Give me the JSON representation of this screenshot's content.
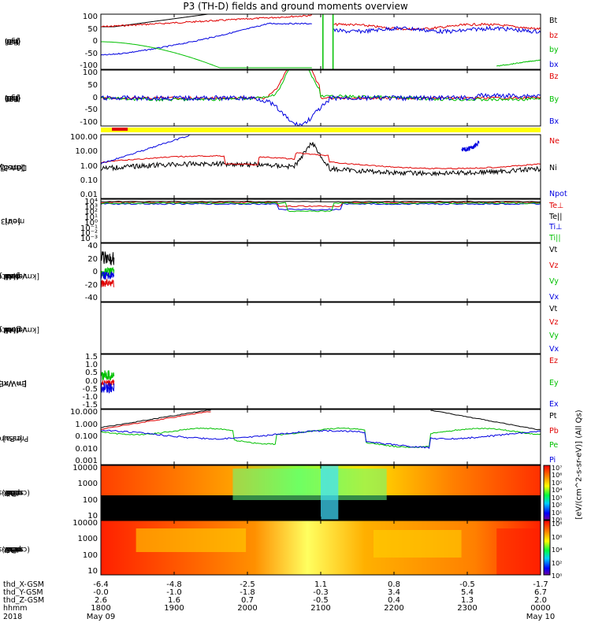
{
  "title": "P3 (TH-D) fields and ground moments overview",
  "chart_data": [
    {
      "type": "line",
      "panel": "fgs",
      "ylabel_lines": [
        "thd",
        "fgs",
        "gsm",
        "[nT]"
      ],
      "yticks": [
        100,
        50,
        0,
        -50,
        -100
      ],
      "ylim": [
        -100,
        100
      ],
      "series": [
        {
          "name": "Bt",
          "color": "#000000"
        },
        {
          "name": "bz",
          "color": "#e00000"
        },
        {
          "name": "by",
          "color": "#00c000"
        },
        {
          "name": "bx",
          "color": "#0000e0"
        }
      ]
    },
    {
      "type": "line",
      "panel": "fgs-dBz",
      "ylabel_lines": [
        "thd",
        "fgs",
        "gsm",
        "-T89",
        "[nT]"
      ],
      "yticks": [
        100,
        50,
        0,
        -50,
        -100
      ],
      "ylim": [
        -120,
        120
      ],
      "series": [
        {
          "name": "Bz",
          "color": "#e00000"
        },
        {
          "name": "By",
          "color": "#00c000"
        },
        {
          "name": "Bx",
          "color": "#0000e0"
        }
      ]
    },
    {
      "type": "line",
      "panel": "density",
      "log": true,
      "ylabel_lines": [
        "Density",
        "[1/cc]",
        "[cm-3]"
      ],
      "yticks": [
        "100.00",
        "10.00",
        "1.00",
        "0.10",
        "0.01"
      ],
      "series": [
        {
          "name": "Ne",
          "color": "#e00000"
        },
        {
          "name": "Ni",
          "color": "#000000"
        },
        {
          "name": "Npot",
          "color": "#0000e0"
        }
      ]
    },
    {
      "type": "line",
      "panel": "temperature",
      "log": true,
      "ylabel_lines": [
        "mom3",
        "[eV]"
      ],
      "yticks": [
        "10⁴",
        "10³",
        "10²",
        "10¹",
        "10⁰",
        "10⁻¹",
        "10⁻²",
        "10⁻³"
      ],
      "series": [
        {
          "name": "Te⊥",
          "color": "#e00000"
        },
        {
          "name": "Te||",
          "color": "#000000"
        },
        {
          "name": "Ti⊥",
          "color": "#0000e0"
        },
        {
          "name": "Ti||",
          "color": "#00c000"
        }
      ]
    },
    {
      "type": "line",
      "panel": "peir-velocity",
      "ylabel_lines": [
        "thd",
        "peir",
        "velocity",
        "gsm",
        "[km/s (All Qs)]"
      ],
      "yticks": [
        40,
        20,
        0,
        -20,
        -40
      ],
      "ylim": [
        -40,
        40
      ],
      "series": [
        {
          "name": "Vt",
          "color": "#000000"
        },
        {
          "name": "Vz",
          "color": "#e00000"
        },
        {
          "name": "Vy",
          "color": "#00c000"
        },
        {
          "name": "Vx",
          "color": "#0000e0"
        }
      ]
    },
    {
      "type": "line",
      "panel": "peer-velocity",
      "ylabel_lines": [
        "thd",
        "peer",
        "velocity",
        "gsm",
        "[km/s (All Qs)]"
      ],
      "yticks": [],
      "series": [
        {
          "name": "Vt",
          "color": "#000000"
        },
        {
          "name": "Vz",
          "color": "#e00000"
        },
        {
          "name": "Vy",
          "color": "#00c000"
        },
        {
          "name": "Vx",
          "color": "#0000e0"
        }
      ]
    },
    {
      "type": "line",
      "panel": "efield",
      "ylabel_lines": [
        "E=-VxB",
        "[mV/m]"
      ],
      "yticks": [
        "1.5",
        "1.0",
        "0.5",
        "0.0",
        "-0.5",
        "-1.0",
        "-1.5"
      ],
      "ylim": [
        -1.5,
        1.5
      ],
      "series": [
        {
          "name": "Ez",
          "color": "#e00000"
        },
        {
          "name": "Ey",
          "color": "#00c000"
        },
        {
          "name": "Ex",
          "color": "#0000e0"
        }
      ]
    },
    {
      "type": "line",
      "panel": "pressure",
      "log": true,
      "ylabel_lines": [
        "Pressure",
        "[nPa]"
      ],
      "yticks": [
        "10.000",
        "1.000",
        "0.100",
        "0.010",
        "0.001"
      ],
      "series": [
        {
          "name": "Pt",
          "color": "#000000"
        },
        {
          "name": "Pb",
          "color": "#e00000"
        },
        {
          "name": "Pe",
          "color": "#00c000"
        },
        {
          "name": "Pi",
          "color": "#0000e0"
        }
      ]
    },
    {
      "type": "heatmap",
      "panel": "peir-spectrogram",
      "ylabel_lines": [
        "thd",
        "peir",
        "en",
        "eflux",
        "eV",
        "(cm^2-s-",
        "sr-eV)"
      ],
      "yticks": [
        "10000",
        "1000",
        "100",
        "10"
      ]
    },
    {
      "type": "heatmap",
      "panel": "peer-spectrogram",
      "ylabel_lines": [
        "thd",
        "peer",
        "en",
        "eflux",
        "eV",
        "(cm^2-s-",
        "sr-eV)"
      ],
      "yticks": [
        "10000",
        "1000",
        "100",
        "10"
      ]
    }
  ],
  "colorbar": {
    "ticks": [
      "10⁷",
      "10⁶",
      "10⁵",
      "10⁴",
      "10³",
      "10²",
      "10¹",
      "10⁰"
    ],
    "ticks_lower": [
      "10⁸",
      "10⁶",
      "10⁴",
      "10²",
      "10⁰"
    ],
    "label": "[eV/(cm^2-s-sr-eV)] (All Qs)"
  },
  "xaxis": {
    "row_labels": [
      "thd_X-GSM",
      "thd_Y-GSM",
      "thd_Z-GSM",
      "hhmm",
      "2018"
    ],
    "x_gsm": [
      "-6.4",
      "-4.8",
      "-2.5",
      "1.1",
      "0.8",
      "-0.5",
      "-1.7"
    ],
    "y_gsm": [
      "-0.0",
      "-1.0",
      "-1.8",
      "-0.3",
      "3.4",
      "5.4",
      "6.7"
    ],
    "z_gsm": [
      "2.6",
      "1.6",
      "0.7",
      "-0.5",
      "0.4",
      "1.3",
      "2.0"
    ],
    "hhmm": [
      "1800",
      "1900",
      "2000",
      "2100",
      "2200",
      "2300",
      "0000"
    ],
    "dates": [
      "May 09",
      "",
      "",
      "",
      "",
      "",
      "May 10"
    ]
  }
}
